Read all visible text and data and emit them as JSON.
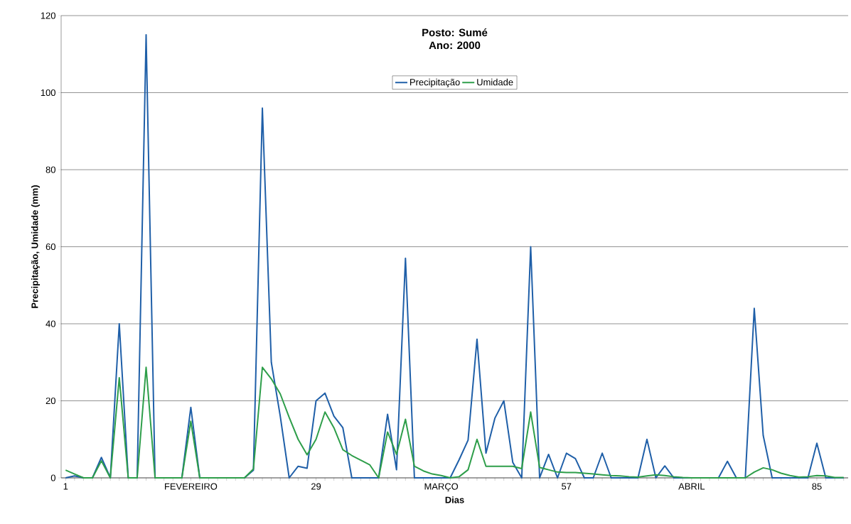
{
  "chart_data": {
    "type": "line",
    "title": "Posto: Sumé",
    "subtitle": "Ano: 2000",
    "xlabel": "Dias",
    "ylabel": "Precipitação, Umidade (mm)",
    "categories": [
      "1",
      null,
      null,
      null,
      null,
      null,
      null,
      null,
      null,
      null,
      null,
      null,
      null,
      null,
      "FEVEREIRO",
      null,
      null,
      null,
      null,
      null,
      null,
      null,
      null,
      null,
      null,
      null,
      null,
      null,
      "29",
      null,
      null,
      null,
      null,
      null,
      null,
      null,
      null,
      null,
      null,
      null,
      null,
      null,
      "MARÇO",
      null,
      null,
      null,
      null,
      null,
      null,
      null,
      null,
      null,
      null,
      null,
      null,
      null,
      "57",
      null,
      null,
      null,
      null,
      null,
      null,
      null,
      null,
      null,
      null,
      null,
      null,
      null,
      "ABRIL",
      null,
      null,
      null,
      null,
      null,
      null,
      null,
      null,
      null,
      null,
      null,
      null,
      null,
      "85",
      null,
      null,
      null
    ],
    "series": [
      {
        "name": "Precipitação",
        "color": "#1f5fa8",
        "values": [
          0,
          0.5,
          0,
          0,
          5.3,
          0,
          40,
          0,
          0,
          115,
          0,
          0,
          0,
          0,
          18.3,
          0,
          0,
          0,
          0,
          0,
          0,
          2,
          96,
          30,
          16,
          0,
          3,
          2.5,
          20,
          22,
          16,
          13,
          0,
          0,
          0,
          0,
          16.5,
          2.1,
          57,
          0,
          0,
          0,
          0,
          0,
          4.7,
          9.8,
          36,
          6.4,
          15.5,
          20,
          4,
          0,
          60,
          0,
          6.1,
          0,
          6.4,
          5,
          0,
          0,
          6.4,
          0,
          0,
          0,
          0,
          10,
          0,
          3.1,
          0,
          0,
          0,
          0,
          0,
          0,
          4.3,
          0,
          0,
          44,
          11,
          0,
          0,
          0,
          0,
          0,
          9,
          0,
          0,
          0
        ]
      },
      {
        "name": "Umidade",
        "color": "#2e9e4a",
        "values": [
          2,
          1,
          0,
          0,
          4.4,
          0,
          26,
          0,
          0,
          28.7,
          0,
          0,
          0,
          0,
          14.7,
          0,
          0,
          0,
          0,
          0,
          0,
          2.3,
          28.7,
          25.7,
          21.8,
          15.7,
          10,
          6,
          10,
          17.1,
          13,
          7.3,
          5.8,
          4.6,
          3.4,
          0,
          11.9,
          6.1,
          15.2,
          3,
          1.8,
          1,
          0.6,
          0,
          0.3,
          2.1,
          10,
          3,
          3,
          3,
          3,
          2.4,
          17.1,
          2.7,
          2.1,
          1.5,
          1.4,
          1.4,
          1.2,
          1,
          0.8,
          0.6,
          0.5,
          0.3,
          0.2,
          0.5,
          0.8,
          0.6,
          0.3,
          0.1,
          0,
          0,
          0,
          0,
          0,
          0,
          0,
          1.5,
          2.6,
          2.1,
          1.2,
          0.6,
          0.2,
          0.3,
          0.6,
          0.5,
          0.1,
          0.1
        ]
      }
    ],
    "ylim": [
      0,
      120
    ],
    "yticks": [
      0,
      20,
      40,
      60,
      80,
      100,
      120
    ],
    "grid": "y",
    "legend": "top",
    "line_style": "solid",
    "marker": "none"
  }
}
